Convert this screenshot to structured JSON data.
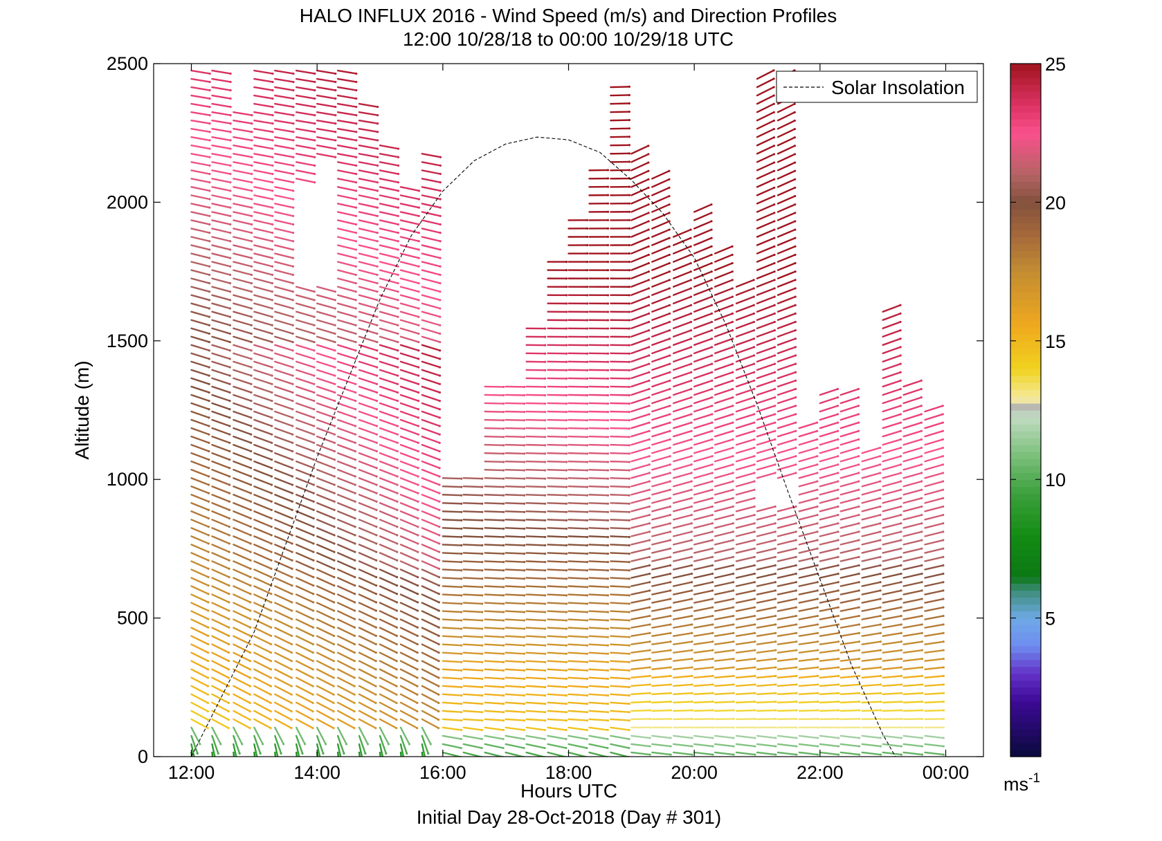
{
  "chart_data": {
    "type": "wind-barb-profile",
    "title": "HALO INFLUX 2016 - Wind Speed (m/s) and Direction Profiles",
    "subtitle": "12:00 10/28/18 to 00:00 10/29/18  UTC",
    "xlabel": "Hours UTC",
    "footer": "Initial Day 28-Oct-2018 (Day # 301)",
    "ylabel": "Altitude (m)",
    "xlim": [
      11.4,
      24.6
    ],
    "ylim": [
      0,
      2500
    ],
    "x_ticks": [
      {
        "value": 12,
        "label": "12:00"
      },
      {
        "value": 14,
        "label": "14:00"
      },
      {
        "value": 16,
        "label": "16:00"
      },
      {
        "value": 18,
        "label": "18:00"
      },
      {
        "value": 20,
        "label": "20:00"
      },
      {
        "value": 22,
        "label": "22:00"
      },
      {
        "value": 24,
        "label": "00:00"
      }
    ],
    "y_ticks": [
      {
        "value": 0,
        "label": "0"
      },
      {
        "value": 500,
        "label": "500"
      },
      {
        "value": 1000,
        "label": "1000"
      },
      {
        "value": 1500,
        "label": "1500"
      },
      {
        "value": 2000,
        "label": "2000"
      },
      {
        "value": 2500,
        "label": "2500"
      }
    ],
    "legend": {
      "position": "top-right",
      "entries": [
        {
          "name": "Solar Insolation",
          "style": "dashed",
          "color": "#000000"
        }
      ]
    },
    "colorbar": {
      "unit_label": "ms",
      "unit_exponent": "-1",
      "range": [
        0,
        25
      ],
      "ticks": [
        {
          "value": 5,
          "label": "5"
        },
        {
          "value": 10,
          "label": "10"
        },
        {
          "value": 15,
          "label": "15"
        },
        {
          "value": 20,
          "label": "20"
        },
        {
          "value": 25,
          "label": "25"
        }
      ],
      "stops": [
        {
          "value": 0,
          "color": "#0a0a3c"
        },
        {
          "value": 2,
          "color": "#3c0a96"
        },
        {
          "value": 3,
          "color": "#6432c8"
        },
        {
          "value": 4,
          "color": "#6e8cf0"
        },
        {
          "value": 5,
          "color": "#6eaae6"
        },
        {
          "value": 6,
          "color": "#3c8c78"
        },
        {
          "value": 6.5,
          "color": "#0a7814"
        },
        {
          "value": 8,
          "color": "#148c14"
        },
        {
          "value": 9.5,
          "color": "#3ca03c"
        },
        {
          "value": 11,
          "color": "#82c382"
        },
        {
          "value": 12.3,
          "color": "#c3dcc3"
        },
        {
          "value": 12.6,
          "color": "#b4b4b4"
        },
        {
          "value": 12.9,
          "color": "#f5eba0"
        },
        {
          "value": 14,
          "color": "#f0d21e"
        },
        {
          "value": 15.5,
          "color": "#f0aa1e"
        },
        {
          "value": 17.5,
          "color": "#c38c32"
        },
        {
          "value": 19,
          "color": "#a0643c"
        },
        {
          "value": 20,
          "color": "#82503c"
        },
        {
          "value": 21,
          "color": "#b46464"
        },
        {
          "value": 22.5,
          "color": "#fa508c"
        },
        {
          "value": 23.5,
          "color": "#dc3264"
        },
        {
          "value": 25,
          "color": "#a0141e"
        }
      ]
    },
    "solar_insolation_curve": {
      "description_source": "dashed curve",
      "x": [
        12.0,
        13.0,
        14.0,
        15.0,
        15.5,
        16.0,
        16.5,
        17.0,
        17.5,
        18.0,
        18.5,
        19.0,
        19.5,
        20.0,
        20.5,
        21.0,
        21.5,
        22.0,
        22.5,
        23.0,
        23.2
      ],
      "y": [
        0,
        450,
        1080,
        1650,
        1880,
        2040,
        2150,
        2210,
        2235,
        2225,
        2180,
        2080,
        1960,
        1800,
        1560,
        1270,
        950,
        640,
        330,
        80,
        0
      ]
    },
    "profiles": [
      {
        "time": 12.0,
        "top": 2480,
        "pattern": "early"
      },
      {
        "time": 12.33,
        "top": 2480,
        "pattern": "early"
      },
      {
        "time": 12.67,
        "top": 2330,
        "pattern": "early"
      },
      {
        "time": 13.0,
        "top": 2490,
        "pattern": "early"
      },
      {
        "time": 13.33,
        "top": 2490,
        "pattern": "early"
      },
      {
        "time": 13.67,
        "top": 2490,
        "pattern": "early",
        "gap": [
          1720,
          2080
        ]
      },
      {
        "time": 14.0,
        "top": 2490,
        "pattern": "early",
        "gap": [
          1720,
          2150
        ]
      },
      {
        "time": 14.33,
        "top": 2490,
        "pattern": "early"
      },
      {
        "time": 14.67,
        "top": 2360,
        "pattern": "early"
      },
      {
        "time": 15.0,
        "top": 2220,
        "pattern": "early"
      },
      {
        "time": 15.33,
        "top": 2080,
        "pattern": "early"
      },
      {
        "time": 15.67,
        "top": 2180,
        "pattern": "early"
      },
      {
        "time": 16.0,
        "top": 1010,
        "pattern": "mid"
      },
      {
        "time": 16.33,
        "top": 1010,
        "pattern": "mid"
      },
      {
        "time": 16.67,
        "top": 1360,
        "pattern": "mid"
      },
      {
        "time": 17.0,
        "top": 1340,
        "pattern": "mid"
      },
      {
        "time": 17.33,
        "top": 1570,
        "pattern": "mid"
      },
      {
        "time": 17.67,
        "top": 1790,
        "pattern": "mid"
      },
      {
        "time": 18.0,
        "top": 1940,
        "pattern": "mid"
      },
      {
        "time": 18.33,
        "top": 2120,
        "pattern": "mid"
      },
      {
        "time": 18.67,
        "top": 2420,
        "pattern": "mid"
      },
      {
        "time": 19.0,
        "top": 2190,
        "pattern": "late"
      },
      {
        "time": 19.33,
        "top": 2090,
        "pattern": "late"
      },
      {
        "time": 19.67,
        "top": 1890,
        "pattern": "late"
      },
      {
        "time": 20.0,
        "top": 1980,
        "pattern": "late"
      },
      {
        "time": 20.33,
        "top": 1830,
        "pattern": "late"
      },
      {
        "time": 20.67,
        "top": 1720,
        "pattern": "late"
      },
      {
        "time": 21.0,
        "top": 2460,
        "pattern": "late",
        "gap": [
          890,
          1000
        ]
      },
      {
        "time": 21.33,
        "top": 2460,
        "pattern": "late",
        "gap": [
          890,
          1000
        ]
      },
      {
        "time": 21.67,
        "top": 1210,
        "pattern": "late"
      },
      {
        "time": 22.0,
        "top": 1310,
        "pattern": "late"
      },
      {
        "time": 22.33,
        "top": 1330,
        "pattern": "late"
      },
      {
        "time": 22.67,
        "top": 1100,
        "pattern": "late"
      },
      {
        "time": 23.0,
        "top": 1620,
        "pattern": "late"
      },
      {
        "time": 23.33,
        "top": 1350,
        "pattern": "late"
      },
      {
        "time": 23.67,
        "top": 1250,
        "pattern": "late"
      }
    ]
  }
}
